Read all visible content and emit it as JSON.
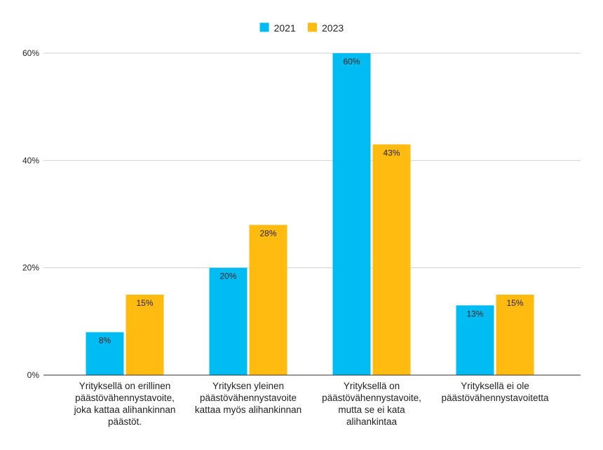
{
  "chart_data": {
    "type": "bar",
    "title": "",
    "xlabel": "",
    "ylabel": "",
    "categories": [
      [
        "Yrityksellä on erillinen",
        "päästövähennystavoite,",
        "joka kattaa alihankinnan",
        "päästöt."
      ],
      [
        "Yrityksen yleinen",
        "päästövähennystavoite",
        "kattaa myös alihankinnan"
      ],
      [
        "Yrityksellä on",
        "päästövähennystavoite,",
        "mutta se ei kata",
        "alihankintaa"
      ],
      [
        "Yrityksellä ei ole",
        "päästövähennystavoitetta"
      ]
    ],
    "series": [
      {
        "name": "2021",
        "color": "#00bcf2",
        "values": [
          8,
          20,
          60,
          13
        ],
        "labels": [
          "8%",
          "20%",
          "60%",
          "13%"
        ]
      },
      {
        "name": "2023",
        "color": "#ffbb0f",
        "values": [
          15,
          28,
          43,
          15
        ],
        "labels": [
          "15%",
          "28%",
          "43%",
          "15%"
        ]
      }
    ],
    "ylim": [
      0,
      60
    ],
    "yticks": [
      0,
      20,
      40,
      60
    ],
    "ytick_labels": [
      "0%",
      "20%",
      "40%",
      "60%"
    ],
    "grid": true,
    "legend_position": "top-center"
  }
}
